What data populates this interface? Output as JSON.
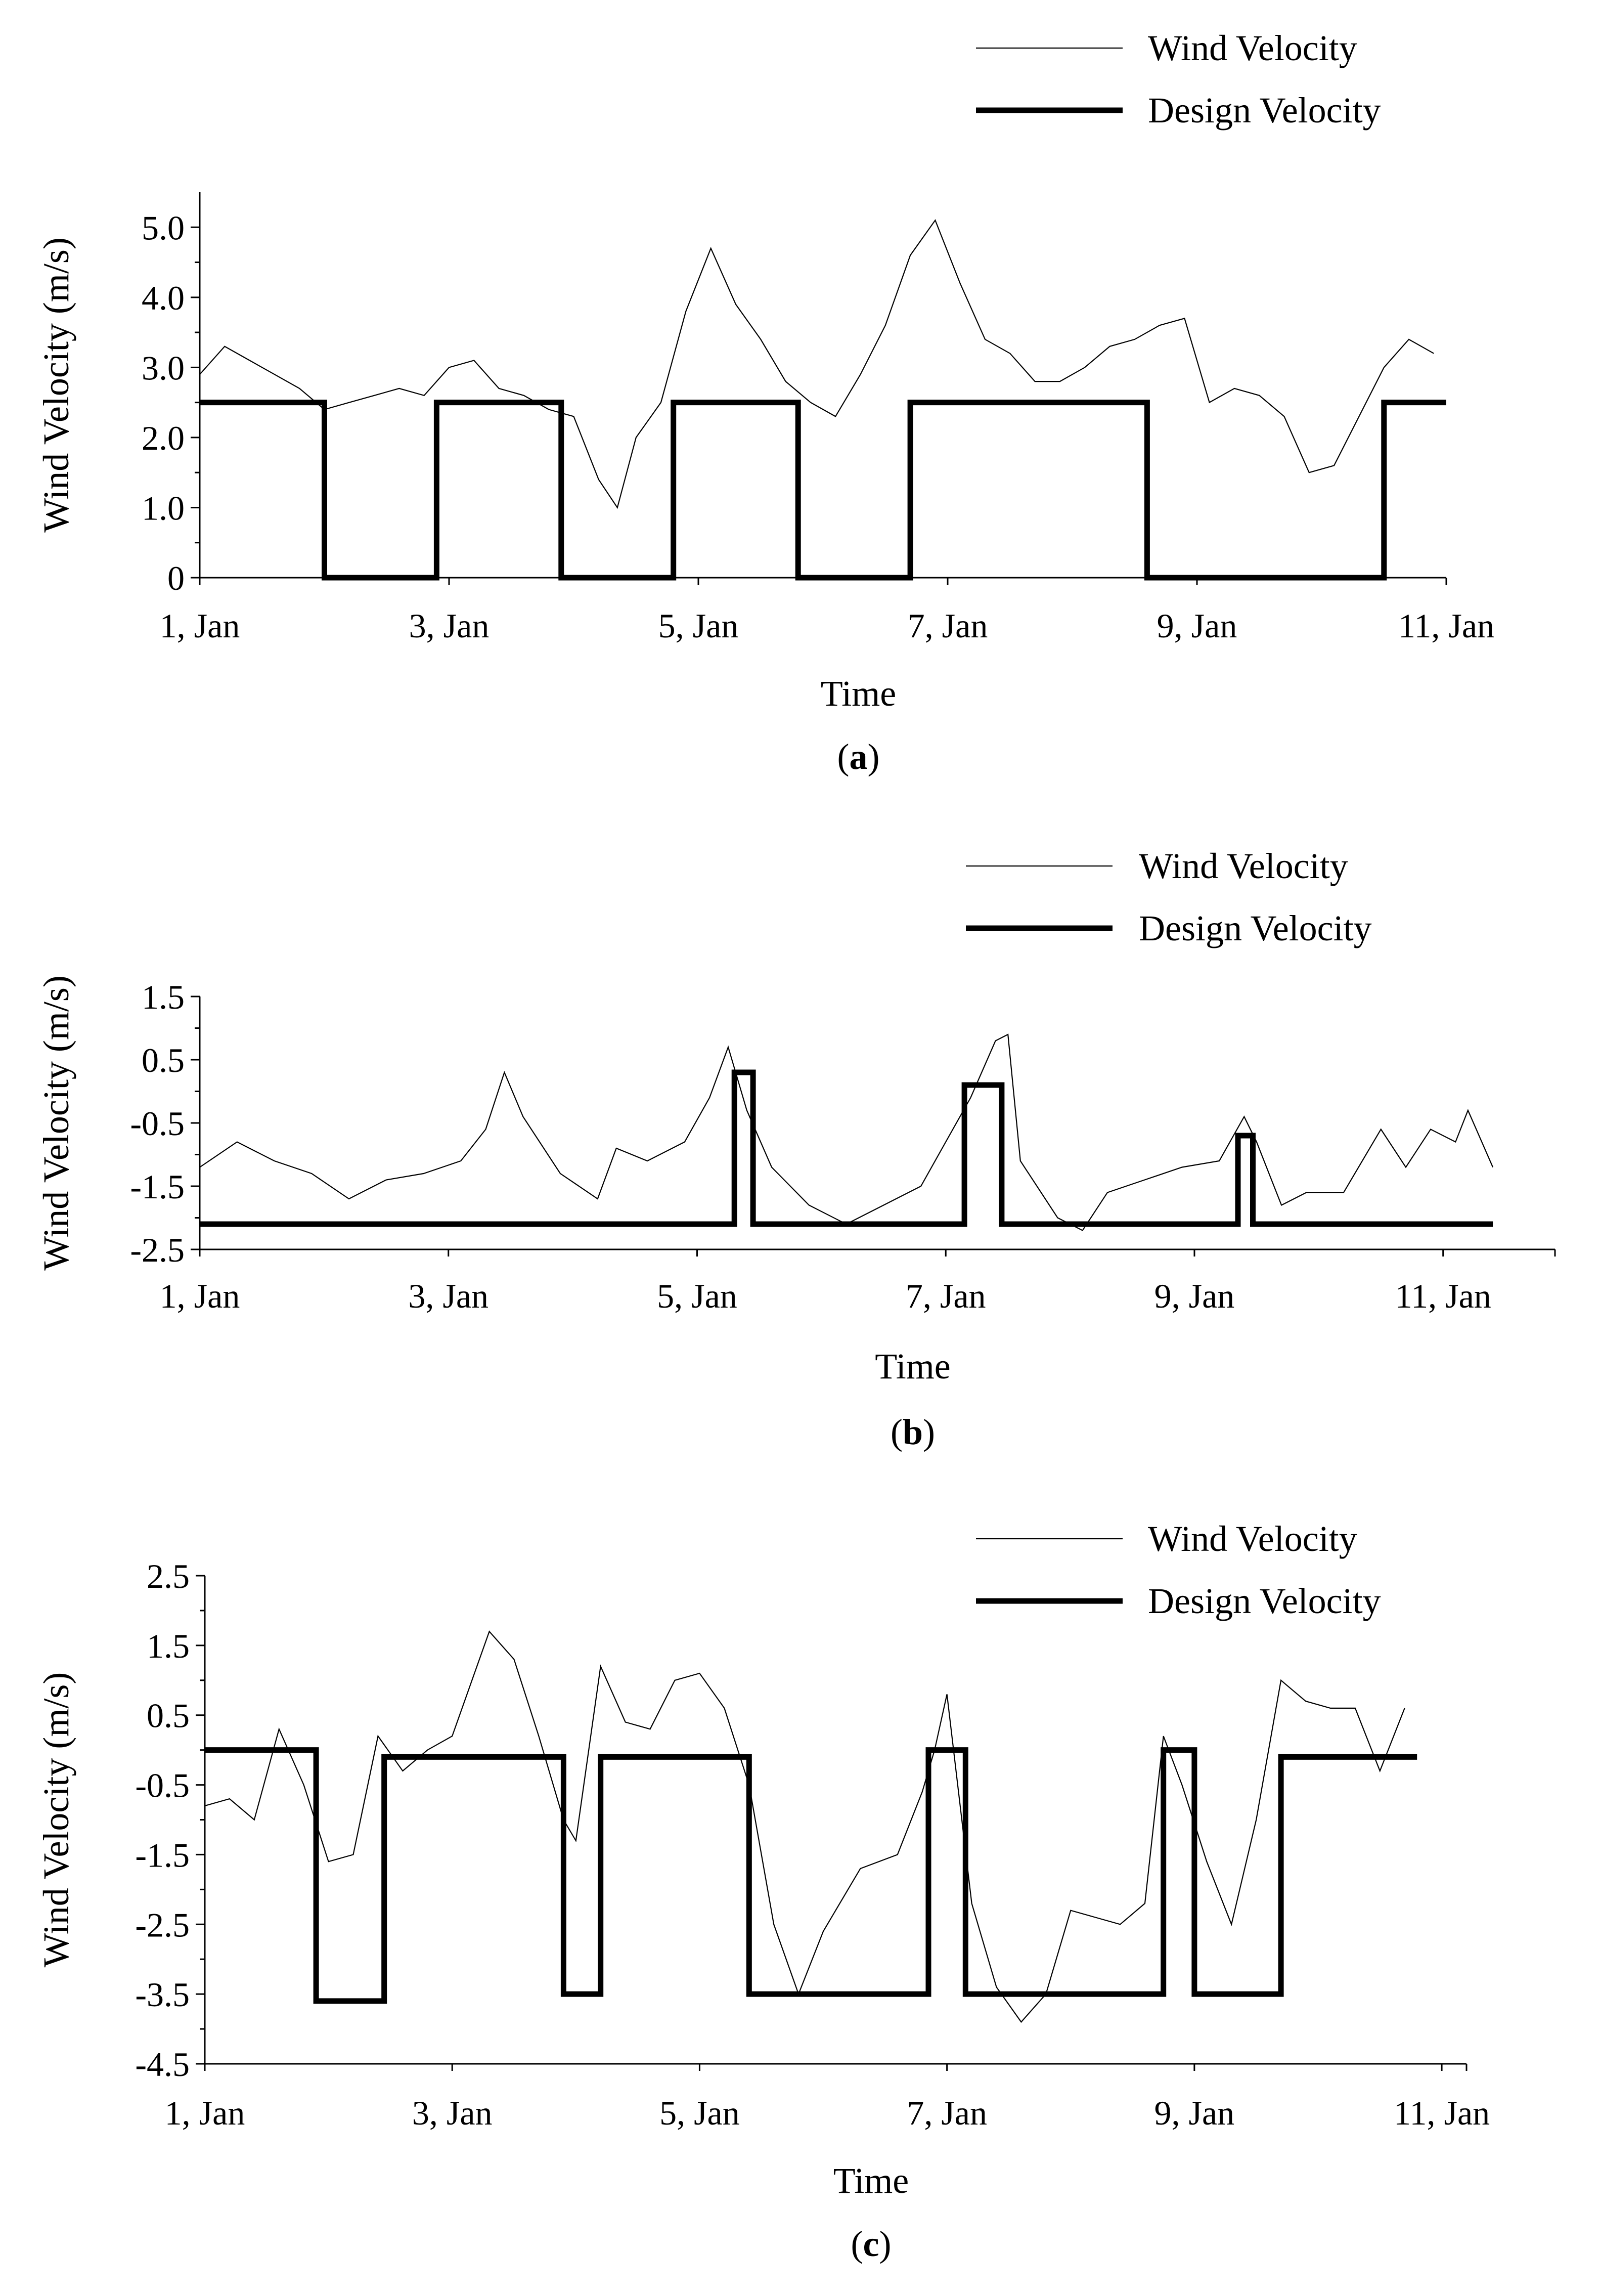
{
  "chart_data": [
    {
      "type": "line",
      "panel": "a",
      "caption": {
        "open": "(",
        "letter": "a",
        "close": ")"
      },
      "xlabel": "Time",
      "ylabel": "Wind Velocity (m/s)",
      "xlim": [
        1,
        11
      ],
      "ylim": [
        0,
        5.5
      ],
      "yticks": [
        0,
        1.0,
        2.0,
        3.0,
        4.0,
        5.0
      ],
      "ytick_labels": [
        "0",
        "1.0",
        "2.0",
        "3.0",
        "4.0",
        "5.0"
      ],
      "xticks": [
        1,
        3,
        5,
        7,
        9,
        11
      ],
      "xtick_labels": [
        "1, Jan",
        "3, Jan",
        "5, Jan",
        "7, Jan",
        "9, Jan",
        "11, Jan"
      ],
      "legend": {
        "position": "top-right",
        "entries": [
          "Wind Velocity",
          "Design Velocity"
        ]
      },
      "series": [
        {
          "name": "Wind Velocity",
          "style": "thin",
          "x": [
            1.0,
            1.2,
            1.4,
            1.6,
            1.8,
            2.0,
            2.2,
            2.4,
            2.6,
            2.8,
            3.0,
            3.2,
            3.4,
            3.6,
            3.8,
            4.0,
            4.2,
            4.35,
            4.5,
            4.7,
            4.9,
            5.1,
            5.3,
            5.5,
            5.7,
            5.9,
            6.1,
            6.3,
            6.5,
            6.7,
            6.9,
            7.1,
            7.3,
            7.5,
            7.7,
            7.9,
            8.1,
            8.3,
            8.5,
            8.7,
            8.9,
            9.1,
            9.3,
            9.5,
            9.7,
            9.9,
            10.1,
            10.3,
            10.5,
            10.7,
            10.9
          ],
          "y": [
            2.9,
            3.3,
            3.1,
            2.9,
            2.7,
            2.4,
            2.5,
            2.6,
            2.7,
            2.6,
            3.0,
            3.1,
            2.7,
            2.6,
            2.4,
            2.3,
            1.4,
            1.0,
            2.0,
            2.5,
            3.8,
            4.7,
            3.9,
            3.4,
            2.8,
            2.5,
            2.3,
            2.9,
            3.6,
            4.6,
            5.1,
            4.2,
            3.4,
            3.2,
            2.8,
            2.8,
            3.0,
            3.3,
            3.4,
            3.6,
            3.7,
            2.5,
            2.7,
            2.6,
            2.3,
            1.5,
            1.6,
            2.3,
            3.0,
            3.4,
            3.2
          ]
        },
        {
          "name": "Design Velocity",
          "style": "thick",
          "x": [
            1.0,
            2.0,
            2.0,
            2.9,
            2.9,
            3.9,
            3.9,
            4.8,
            4.8,
            5.8,
            5.8,
            6.7,
            6.7,
            8.6,
            8.6,
            10.5,
            10.5,
            11.0
          ],
          "y": [
            2.5,
            2.5,
            0,
            0,
            2.5,
            2.5,
            0,
            0,
            2.5,
            2.5,
            0,
            0,
            2.5,
            2.5,
            0,
            0,
            2.5,
            2.5
          ]
        }
      ]
    },
    {
      "type": "line",
      "panel": "b",
      "caption": {
        "open": "(",
        "letter": "b",
        "close": ")"
      },
      "xlabel": "Time",
      "ylabel": "Wind Velocity (m/s)",
      "xlim": [
        1,
        11.9
      ],
      "ylim": [
        -2.5,
        1.5
      ],
      "yticks": [
        -2.5,
        -1.5,
        -0.5,
        0.5,
        1.5
      ],
      "ytick_labels": [
        "-2.5",
        "-1.5",
        "-0.5",
        "0.5",
        "1.5"
      ],
      "xticks": [
        1,
        3,
        5,
        7,
        9,
        11
      ],
      "xtick_labels": [
        "1, Jan",
        "3, Jan",
        "5, Jan",
        "7, Jan",
        "9, Jan",
        "11, Jan"
      ],
      "legend": {
        "position": "top-right",
        "entries": [
          "Wind Velocity",
          "Design Velocity"
        ]
      },
      "series": [
        {
          "name": "Wind Velocity",
          "style": "thin",
          "x": [
            1.0,
            1.3,
            1.6,
            1.9,
            2.2,
            2.5,
            2.8,
            3.1,
            3.3,
            3.45,
            3.6,
            3.9,
            4.2,
            4.35,
            4.6,
            4.9,
            5.1,
            5.25,
            5.4,
            5.6,
            5.9,
            6.2,
            6.5,
            6.8,
            7.0,
            7.2,
            7.4,
            7.5,
            7.6,
            7.9,
            8.1,
            8.3,
            8.6,
            8.9,
            9.2,
            9.4,
            9.5,
            9.7,
            9.9,
            10.2,
            10.5,
            10.7,
            10.9,
            11.1,
            11.2,
            11.4
          ],
          "y": [
            -1.2,
            -0.8,
            -1.1,
            -1.3,
            -1.7,
            -1.4,
            -1.3,
            -1.1,
            -0.6,
            0.3,
            -0.4,
            -1.3,
            -1.7,
            -0.9,
            -1.1,
            -0.8,
            -0.1,
            0.7,
            -0.3,
            -1.2,
            -1.8,
            -2.1,
            -1.8,
            -1.5,
            -0.8,
            -0.1,
            0.8,
            0.9,
            -1.1,
            -2.0,
            -2.2,
            -1.6,
            -1.4,
            -1.2,
            -1.1,
            -0.4,
            -0.8,
            -1.8,
            -1.6,
            -1.6,
            -0.6,
            -1.2,
            -0.6,
            -0.8,
            -0.3,
            -1.2
          ]
        },
        {
          "name": "Design Velocity",
          "style": "thick",
          "x": [
            1.0,
            5.3,
            5.3,
            5.45,
            5.45,
            7.15,
            7.15,
            7.45,
            7.45,
            9.35,
            9.35,
            9.47,
            9.47,
            11.4
          ],
          "y": [
            -2.1,
            -2.1,
            0.3,
            0.3,
            -2.1,
            -2.1,
            0.1,
            0.1,
            -2.1,
            -2.1,
            -0.7,
            -0.7,
            -2.1,
            -2.1
          ]
        }
      ]
    },
    {
      "type": "line",
      "panel": "c",
      "caption": {
        "open": "(",
        "letter": "c",
        "close": ")"
      },
      "xlabel": "Time",
      "ylabel": "Wind Velocity (m/s)",
      "xlim": [
        1,
        11.2
      ],
      "ylim": [
        -4.5,
        2.5
      ],
      "yticks": [
        -4.5,
        -3.5,
        -2.5,
        -1.5,
        -0.5,
        0.5,
        1.5,
        2.5
      ],
      "ytick_labels": [
        "-4.5",
        "-3.5",
        "-2.5",
        "-1.5",
        "-0.5",
        "0.5",
        "1.5",
        "2.5"
      ],
      "xticks": [
        1,
        3,
        5,
        7,
        9,
        11
      ],
      "xtick_labels": [
        "1, Jan",
        "3, Jan",
        "5, Jan",
        "7, Jan",
        "9, Jan",
        "11, Jan"
      ],
      "legend": {
        "position": "top-right",
        "entries": [
          "Wind Velocity",
          "Design Velocity"
        ]
      },
      "series": [
        {
          "name": "Wind Velocity",
          "style": "thin",
          "x": [
            1.0,
            1.2,
            1.4,
            1.6,
            1.8,
            2.0,
            2.2,
            2.4,
            2.6,
            2.8,
            3.0,
            3.2,
            3.3,
            3.5,
            3.7,
            3.9,
            4.0,
            4.2,
            4.4,
            4.6,
            4.8,
            5.0,
            5.2,
            5.4,
            5.6,
            5.8,
            6.0,
            6.3,
            6.6,
            6.8,
            6.9,
            7.0,
            7.2,
            7.4,
            7.6,
            7.8,
            8.0,
            8.2,
            8.4,
            8.6,
            8.75,
            8.9,
            9.1,
            9.3,
            9.5,
            9.7,
            9.9,
            10.1,
            10.3,
            10.5,
            10.7
          ],
          "y": [
            -0.8,
            -0.7,
            -1.0,
            0.3,
            -0.5,
            -1.6,
            -1.5,
            0.2,
            -0.3,
            0.0,
            0.2,
            1.2,
            1.7,
            1.3,
            0.2,
            -1.0,
            -1.3,
            1.2,
            0.4,
            0.3,
            1.0,
            1.1,
            0.6,
            -0.5,
            -2.5,
            -3.5,
            -2.6,
            -1.7,
            -1.5,
            -0.6,
            0.0,
            0.8,
            -2.2,
            -3.4,
            -3.9,
            -3.5,
            -2.3,
            -2.4,
            -2.5,
            -2.2,
            0.2,
            -0.5,
            -1.6,
            -2.5,
            -1.0,
            1.0,
            0.7,
            0.6,
            0.6,
            -0.3,
            0.6
          ]
        },
        {
          "name": "Design Velocity",
          "style": "thick",
          "x": [
            1.0,
            1.9,
            1.9,
            2.45,
            2.45,
            3.9,
            3.9,
            4.2,
            4.2,
            5.4,
            5.4,
            6.85,
            6.85,
            7.15,
            7.15,
            8.75,
            8.75,
            9.0,
            9.0,
            9.7,
            9.7,
            10.8
          ],
          "y": [
            0.0,
            0.0,
            -3.6,
            -3.6,
            -0.1,
            -0.1,
            -3.5,
            -3.5,
            -0.1,
            -0.1,
            -3.5,
            -3.5,
            0.0,
            0.0,
            -3.5,
            -3.5,
            0.0,
            0.0,
            -3.5,
            -3.5,
            -0.1,
            -0.1
          ]
        }
      ]
    }
  ]
}
